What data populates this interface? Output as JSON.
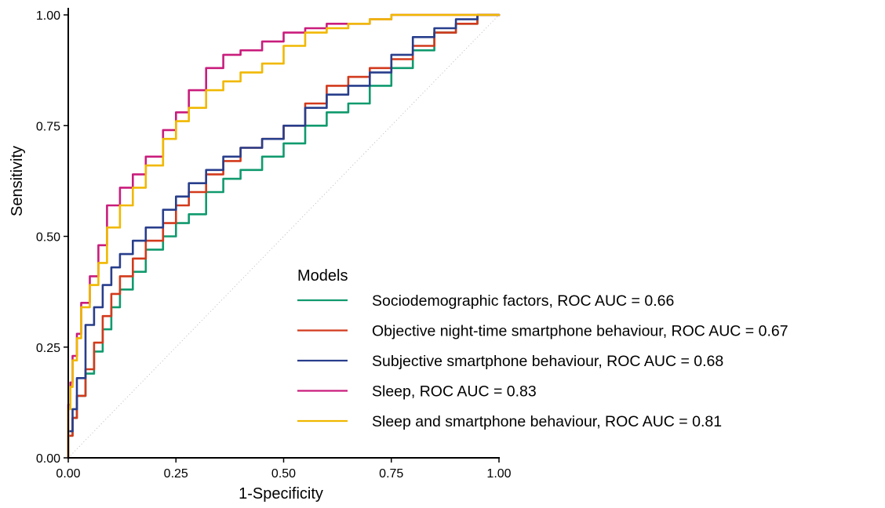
{
  "chart_data": {
    "type": "line",
    "title": "",
    "xlabel": "1-Specificity",
    "ylabel": "Sensitivity",
    "xlim": [
      0,
      1
    ],
    "ylim": [
      0,
      1
    ],
    "x_ticks": [
      "0.00",
      "0.25",
      "0.50",
      "0.75",
      "1.00"
    ],
    "y_ticks": [
      "0.00",
      "0.25",
      "0.50",
      "0.75",
      "1.00"
    ],
    "grid": false,
    "reference_line": {
      "x": [
        0,
        1
      ],
      "y": [
        0,
        1
      ],
      "style": "dotted",
      "color": "#bbbbbb"
    },
    "legend": {
      "title": "Models",
      "placement": "center-right"
    },
    "series": [
      {
        "name": "Sociodemographic factors, ROC AUC = 0.66",
        "color": "#109a6e",
        "x": [
          0,
          0.01,
          0.02,
          0.04,
          0.06,
          0.08,
          0.1,
          0.12,
          0.15,
          0.18,
          0.22,
          0.25,
          0.28,
          0.32,
          0.36,
          0.4,
          0.45,
          0.5,
          0.55,
          0.6,
          0.65,
          0.7,
          0.75,
          0.8,
          0.85,
          0.9,
          0.95,
          1.0
        ],
        "y": [
          0,
          0.05,
          0.09,
          0.14,
          0.19,
          0.24,
          0.29,
          0.34,
          0.38,
          0.42,
          0.47,
          0.5,
          0.53,
          0.55,
          0.6,
          0.63,
          0.65,
          0.68,
          0.71,
          0.75,
          0.78,
          0.8,
          0.84,
          0.88,
          0.92,
          0.96,
          0.98,
          1.0
        ]
      },
      {
        "name": "Objective night-time smartphone behaviour, ROC AUC = 0.67",
        "color": "#d23a1c",
        "x": [
          0,
          0.01,
          0.02,
          0.04,
          0.06,
          0.08,
          0.1,
          0.12,
          0.15,
          0.18,
          0.22,
          0.25,
          0.28,
          0.32,
          0.36,
          0.4,
          0.45,
          0.5,
          0.55,
          0.6,
          0.65,
          0.7,
          0.75,
          0.8,
          0.85,
          0.9,
          0.95,
          1.0
        ],
        "y": [
          0,
          0.05,
          0.09,
          0.14,
          0.2,
          0.26,
          0.32,
          0.37,
          0.41,
          0.45,
          0.49,
          0.53,
          0.57,
          0.6,
          0.64,
          0.67,
          0.7,
          0.72,
          0.75,
          0.8,
          0.84,
          0.86,
          0.88,
          0.9,
          0.93,
          0.96,
          0.98,
          1.0
        ]
      },
      {
        "name": "Subjective smartphone behaviour, ROC AUC = 0.68",
        "color": "#283e8c",
        "x": [
          0,
          0.01,
          0.02,
          0.04,
          0.06,
          0.08,
          0.1,
          0.12,
          0.15,
          0.18,
          0.22,
          0.25,
          0.28,
          0.32,
          0.36,
          0.4,
          0.45,
          0.5,
          0.55,
          0.6,
          0.65,
          0.7,
          0.75,
          0.8,
          0.85,
          0.9,
          0.95,
          1.0
        ],
        "y": [
          0,
          0.06,
          0.11,
          0.18,
          0.3,
          0.34,
          0.39,
          0.43,
          0.46,
          0.49,
          0.52,
          0.56,
          0.59,
          0.62,
          0.65,
          0.68,
          0.7,
          0.72,
          0.75,
          0.79,
          0.82,
          0.84,
          0.87,
          0.91,
          0.95,
          0.97,
          0.99,
          1.0
        ]
      },
      {
        "name": "Sleep, ROC AUC = 0.83",
        "color": "#c91d7c",
        "x": [
          0,
          0.005,
          0.01,
          0.02,
          0.03,
          0.05,
          0.07,
          0.09,
          0.12,
          0.15,
          0.18,
          0.22,
          0.25,
          0.28,
          0.32,
          0.36,
          0.4,
          0.45,
          0.5,
          0.55,
          0.6,
          0.65,
          0.7,
          0.75,
          0.8,
          0.85,
          0.9,
          0.95,
          1.0
        ],
        "y": [
          0,
          0.12,
          0.17,
          0.23,
          0.28,
          0.35,
          0.41,
          0.48,
          0.57,
          0.61,
          0.64,
          0.68,
          0.74,
          0.78,
          0.83,
          0.88,
          0.91,
          0.92,
          0.94,
          0.96,
          0.97,
          0.98,
          0.98,
          0.99,
          1.0,
          1.0,
          1.0,
          1.0,
          1.0
        ]
      },
      {
        "name": "Sleep and smartphone behaviour, ROC AUC = 0.81",
        "color": "#f0b800",
        "x": [
          0,
          0.005,
          0.01,
          0.02,
          0.03,
          0.05,
          0.07,
          0.09,
          0.12,
          0.15,
          0.18,
          0.22,
          0.25,
          0.28,
          0.32,
          0.36,
          0.4,
          0.45,
          0.5,
          0.55,
          0.6,
          0.65,
          0.7,
          0.75,
          0.8,
          0.85,
          0.9,
          0.95,
          1.0
        ],
        "y": [
          0,
          0.11,
          0.16,
          0.22,
          0.27,
          0.34,
          0.39,
          0.44,
          0.52,
          0.57,
          0.61,
          0.66,
          0.72,
          0.76,
          0.79,
          0.83,
          0.85,
          0.87,
          0.89,
          0.93,
          0.96,
          0.97,
          0.98,
          0.99,
          1.0,
          1.0,
          1.0,
          1.0,
          1.0
        ]
      }
    ]
  }
}
